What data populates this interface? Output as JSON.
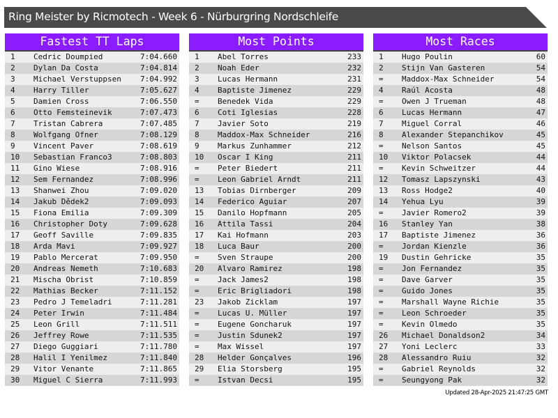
{
  "title": "Ring Meister by Ricmotech - Week 6 - Nürburgring Nordschleife",
  "accent_color": "#8a1cff",
  "panels": [
    {
      "title": "Fastest TT Laps",
      "rows": [
        [
          "1",
          "Cedric Doumpied",
          "7:04.660"
        ],
        [
          "2",
          "Dylan Da Costa",
          "7:04.814"
        ],
        [
          "3",
          "Michael Verstuppsen",
          "7:04.992"
        ],
        [
          "4",
          "Harry Tiller",
          "7:05.627"
        ],
        [
          "5",
          "Damien Cross",
          "7:06.550"
        ],
        [
          "6",
          "Otto Femsteinevik",
          "7:07.473"
        ],
        [
          "7",
          "Tristan Cabrera",
          "7:07.485"
        ],
        [
          "8",
          "Wolfgang Ofner",
          "7:08.129"
        ],
        [
          "9",
          "Vincent Paver",
          "7:08.619"
        ],
        [
          "10",
          "Sebastian Franco3",
          "7:08.803"
        ],
        [
          "11",
          "Gino Wiese",
          "7:08.916"
        ],
        [
          "12",
          "Sem Fernandez",
          "7:08.996"
        ],
        [
          "13",
          "Shanwei Zhou",
          "7:09.020"
        ],
        [
          "14",
          "Jakub Dědek2",
          "7:09.093"
        ],
        [
          "15",
          "Fiona Emilia",
          "7:09.309"
        ],
        [
          "16",
          "Christopher Doty",
          "7:09.628"
        ],
        [
          "17",
          "Geoff Saville",
          "7:09.835"
        ],
        [
          "18",
          "Arda Mavi",
          "7:09.927"
        ],
        [
          "19",
          "Pablo Mercerat",
          "7:09.950"
        ],
        [
          "20",
          "Andreas Nemeth",
          "7:10.683"
        ],
        [
          "21",
          "Mischa Obrist",
          "7:10.859"
        ],
        [
          "22",
          "Mathias Becker",
          "7:11.152"
        ],
        [
          "23",
          "Pedro J Temeladri",
          "7:11.281"
        ],
        [
          "24",
          "Peter Irwin",
          "7:11.484"
        ],
        [
          "25",
          "Leon Grill",
          "7:11.511"
        ],
        [
          "26",
          "Jeffrey Rowe",
          "7:11.535"
        ],
        [
          "27",
          "Diego Guggiari",
          "7:11.780"
        ],
        [
          "28",
          "Halil I Yenilmez",
          "7:11.840"
        ],
        [
          "29",
          "Vitor Venante",
          "7:11.865"
        ],
        [
          "30",
          "Miguel C Sierra",
          "7:11.993"
        ]
      ]
    },
    {
      "title": "Most Points",
      "rows": [
        [
          "1",
          "Abel Torres",
          "233"
        ],
        [
          "2",
          "Noah Eder",
          "232"
        ],
        [
          "3",
          "Lucas Hermann",
          "231"
        ],
        [
          "4",
          "Baptiste Jimenez",
          "229"
        ],
        [
          "=",
          "Benedek Vida",
          "229"
        ],
        [
          "6",
          "Coti Iglesias",
          "228"
        ],
        [
          "7",
          "Javier Soto",
          "219"
        ],
        [
          "8",
          "Maddox-Max Schneider",
          "216"
        ],
        [
          "9",
          "Markus Zunhammer",
          "212"
        ],
        [
          "10",
          "Oscar I King",
          "211"
        ],
        [
          "=",
          "Peter Biedert",
          "211"
        ],
        [
          "=",
          "Leon Gabriel Arndt",
          "211"
        ],
        [
          "13",
          "Tobias Dirnberger",
          "209"
        ],
        [
          "14",
          "Federico Aguiar",
          "207"
        ],
        [
          "15",
          "Danilo Hopfmann",
          "205"
        ],
        [
          "16",
          "Attila Tassi",
          "204"
        ],
        [
          "17",
          "Kai Hofmann",
          "203"
        ],
        [
          "18",
          "Luca Baur",
          "200"
        ],
        [
          "=",
          "Sven Straupe",
          "200"
        ],
        [
          "20",
          "Alvaro Ramirez",
          "198"
        ],
        [
          "=",
          "Jack James2",
          "198"
        ],
        [
          "=",
          "Eric Brigliadori",
          "198"
        ],
        [
          "23",
          "Jakob Zicklam",
          "197"
        ],
        [
          "=",
          "Lucas U. Müller",
          "197"
        ],
        [
          "=",
          "Eugene Goncharuk",
          "197"
        ],
        [
          "=",
          "Justin Sdunek2",
          "197"
        ],
        [
          "=",
          "Max Wissel",
          "197"
        ],
        [
          "28",
          "Helder Gonçalves",
          "196"
        ],
        [
          "29",
          "Elia Storsberg",
          "195"
        ],
        [
          "=",
          "Istvan Decsi",
          "195"
        ]
      ]
    },
    {
      "title": "Most Races",
      "rows": [
        [
          "1",
          "Hugo Poulin",
          "60"
        ],
        [
          "2",
          "Stijn Van Gasteren",
          "54"
        ],
        [
          "=",
          "Maddox-Max Schneider",
          "54"
        ],
        [
          "4",
          "Raúl Acosta",
          "48"
        ],
        [
          "=",
          "Owen J Trueman",
          "48"
        ],
        [
          "6",
          "Lucas Hermann",
          "47"
        ],
        [
          "7",
          "Miguel Corral",
          "46"
        ],
        [
          "8",
          "Alexander Stepanchikov",
          "45"
        ],
        [
          "=",
          "Nelson Santos",
          "45"
        ],
        [
          "10",
          "Viktor Polacsek",
          "44"
        ],
        [
          "=",
          "Kevin Schweitzer",
          "44"
        ],
        [
          "12",
          "Tomasz Lapszynski",
          "43"
        ],
        [
          "13",
          "Ross Hodge2",
          "40"
        ],
        [
          "14",
          "Yehua Lyu",
          "39"
        ],
        [
          "=",
          "Javier Romero2",
          "39"
        ],
        [
          "16",
          "Stanley Yan",
          "38"
        ],
        [
          "17",
          "Baptiste Jimenez",
          "36"
        ],
        [
          "=",
          "Jordan Kienzle",
          "36"
        ],
        [
          "19",
          "Dustin Gehricke",
          "35"
        ],
        [
          "=",
          "Jon Fernandez",
          "35"
        ],
        [
          "=",
          "Dave Garver",
          "35"
        ],
        [
          "=",
          "Guido Jones",
          "35"
        ],
        [
          "=",
          "Marshall Wayne Richie",
          "35"
        ],
        [
          "=",
          "Leon Schroeder",
          "35"
        ],
        [
          "=",
          "Kevin Olmedo",
          "35"
        ],
        [
          "26",
          "Michael Donaldson2",
          "34"
        ],
        [
          "27",
          "Yoni Leclerc",
          "33"
        ],
        [
          "28",
          "Alessandro Ruiu",
          "32"
        ],
        [
          "=",
          "Gabriel Reynolds",
          "32"
        ],
        [
          "=",
          "Seungyong Pak",
          "32"
        ]
      ]
    }
  ],
  "footer": "Updated 28-Apr-2025 21:47:25 GMT"
}
